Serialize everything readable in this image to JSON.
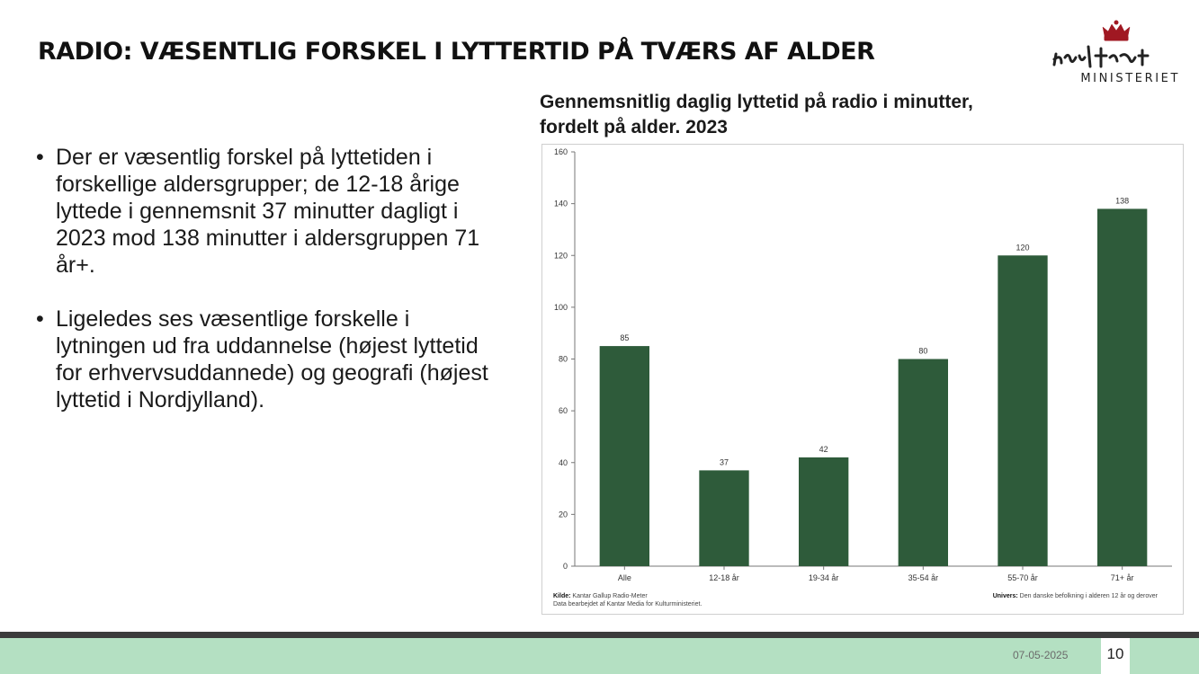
{
  "slide": {
    "title": "RADIO: VÆSENTLIG FORSKEL I LYTTERTID PÅ TVÆRS AF ALDER",
    "logo_text": "MINISTERIET",
    "bullets": [
      "Der er væsentlig forskel på lyttetiden i forskellige aldersgrupper; de 12-18 årige lyttede i gennemsnit 37 minutter dagligt i 2023 mod 138 minutter i aldersgruppen 71 år+.",
      "Ligeledes ses væsentlige forskelle i lytningen ud fra uddannelse (højest lyttetid for erhvervsuddannede) og geografi (højest lyttetid i Nordjylland)."
    ],
    "chart_caption_line1": "Gennemsnitlig daglig lyttetid på radio i minutter,",
    "chart_caption_line2": "fordelt på alder. 2023",
    "source_label": "Kilde:",
    "source_text": "Kantar Gallup Radio-Meter",
    "source_note": "Data bearbejdet af Kantar Media for Kulturministeriet.",
    "universe_label": "Univers:",
    "universe_text": "Den danske befolkning i alderen 12 år og derover",
    "footer_date": "07-05-2025",
    "page_number": "10"
  },
  "colors": {
    "bar": "#2e5b3a",
    "footer_green": "#b4e0c2",
    "footer_dark": "#3c3c3c"
  },
  "chart_data": {
    "type": "bar",
    "categories": [
      "Alle",
      "12-18 år",
      "19-34 år",
      "35-54 år",
      "55-70 år",
      "71+ år"
    ],
    "values": [
      85,
      37,
      42,
      80,
      120,
      138
    ],
    "data_labels": [
      "85",
      "37",
      "42",
      "80",
      "120",
      "138"
    ],
    "ylim": [
      0,
      160
    ],
    "yticks": [
      0,
      20,
      40,
      60,
      80,
      100,
      120,
      140,
      160
    ],
    "ytick_labels": [
      "0",
      "20",
      "40",
      "60",
      "80",
      "100",
      "120",
      "140",
      "160"
    ],
    "grid": false,
    "legend": "none"
  }
}
